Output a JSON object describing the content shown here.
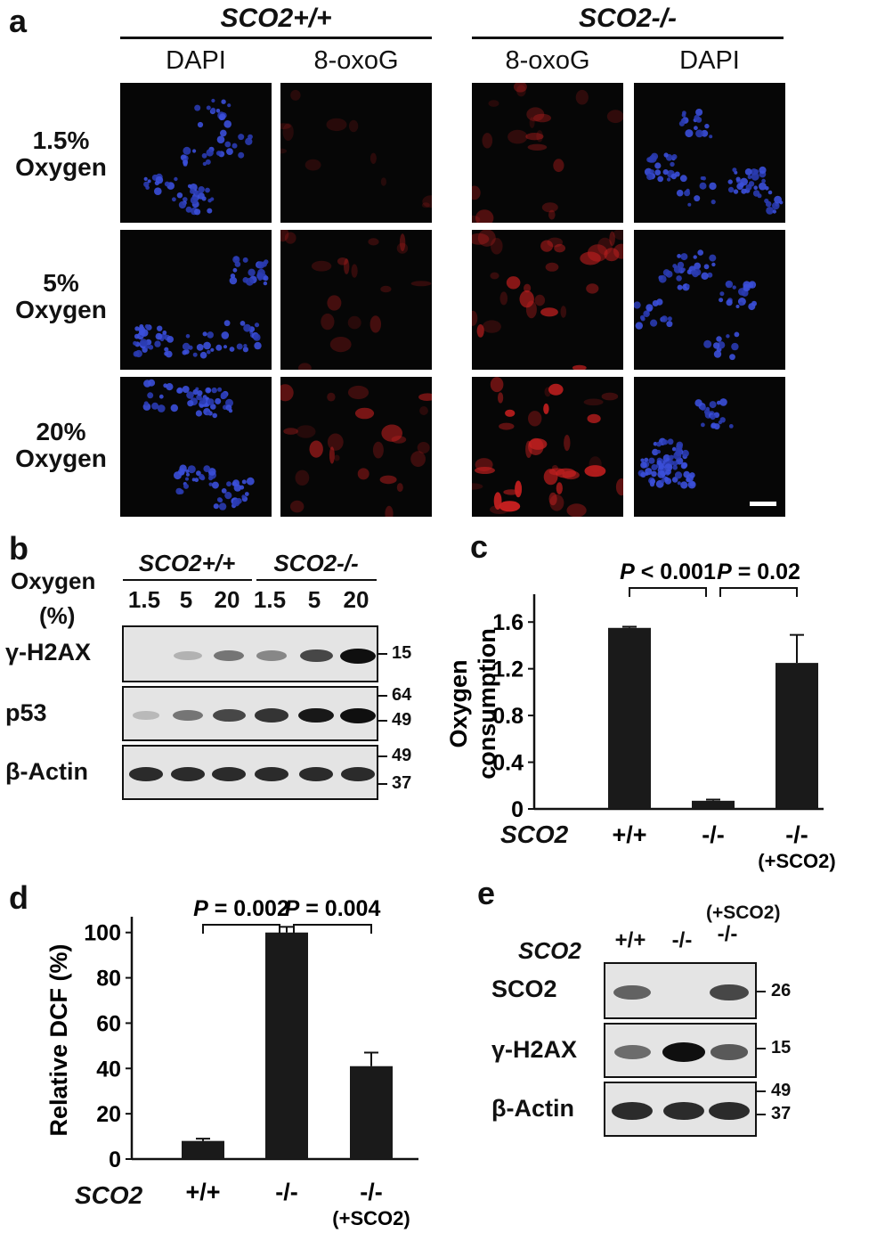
{
  "panel_a": {
    "label": "a",
    "group_wt": "SCO2+/+",
    "group_ko": "SCO2-/-",
    "columns": [
      "DAPI",
      "8-oxoG",
      "8-oxoG",
      "DAPI"
    ],
    "rows": [
      {
        "line1": "1.5%",
        "line2": "Oxygen"
      },
      {
        "line1": "5%",
        "line2": "Oxygen"
      },
      {
        "line1": "20%",
        "line2": "Oxygen"
      }
    ]
  },
  "panel_b": {
    "label": "b",
    "oxygen_label_1": "Oxygen",
    "oxygen_label_2": "(%)",
    "group_wt": "SCO2+/+",
    "group_ko": "SCO2-/-",
    "lanes": [
      "1.5",
      "5",
      "20",
      "1.5",
      "5",
      "20"
    ],
    "rows": [
      {
        "label": "γ-H2AX",
        "markers": [
          "15"
        ]
      },
      {
        "label": "p53",
        "markers": [
          "64",
          "49"
        ]
      },
      {
        "label": "β-Actin",
        "markers": [
          "49",
          "37"
        ]
      }
    ]
  },
  "panel_c": {
    "label": "c",
    "genotype_label": "SCO2",
    "p_left": "P < 0.001",
    "p_right": "P = 0.02",
    "x_sub": "(+SCO2)"
  },
  "panel_d": {
    "label": "d",
    "genotype_label": "SCO2",
    "p_left": "P = 0.002",
    "p_right": "P = 0.004",
    "x_sub": "(+SCO2)"
  },
  "panel_e": {
    "label": "e",
    "genotype_label": "SCO2",
    "lanes": [
      "+/+",
      "-/-",
      "-/-"
    ],
    "lane_sub": "(+SCO2)",
    "rows": [
      {
        "label": "SCO2",
        "markers": [
          "26"
        ]
      },
      {
        "label": "γ-H2AX",
        "markers": [
          "15"
        ]
      },
      {
        "label": "β-Actin",
        "markers": [
          "49",
          "37"
        ]
      }
    ]
  },
  "chart_data": [
    {
      "type": "bar",
      "panel": "c",
      "categories": [
        "+/+",
        "-/-",
        "-/-"
      ],
      "values": [
        1.55,
        0.07,
        1.25
      ],
      "errors": [
        0.01,
        0.01,
        0.24
      ],
      "ylabel": "Oxygen consumption",
      "yticks": [
        "0",
        "0.4",
        "0.8",
        "1.2",
        "1.6"
      ],
      "ylim": [
        0,
        1.8
      ],
      "bar_color": "#1a1a1a"
    },
    {
      "type": "bar",
      "panel": "d",
      "categories": [
        "+/+",
        "-/-",
        "-/-"
      ],
      "values": [
        8,
        100,
        41
      ],
      "errors": [
        1,
        2.5,
        6
      ],
      "ylabel": "Relative DCF (%)",
      "yticks": [
        "0",
        "20",
        "40",
        "60",
        "80",
        "100"
      ],
      "ylim": [
        0,
        105
      ],
      "bar_color": "#1a1a1a"
    }
  ]
}
